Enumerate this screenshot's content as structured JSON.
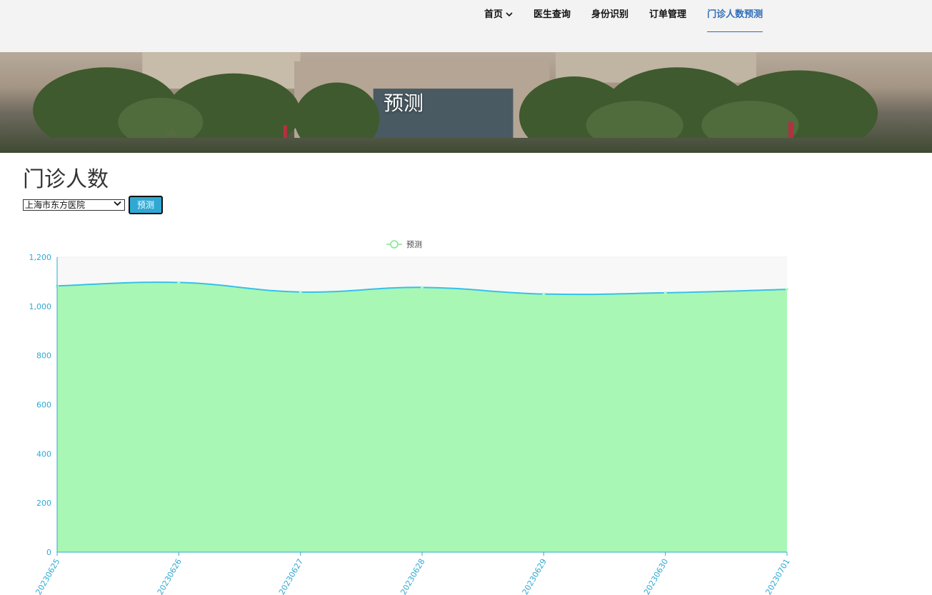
{
  "nav": {
    "items": [
      {
        "label": "首页",
        "has_dropdown": true,
        "active": false
      },
      {
        "label": "医生查询",
        "active": false
      },
      {
        "label": "身份识别",
        "active": false
      },
      {
        "label": "订单管理",
        "active": false
      },
      {
        "label": "门诊人数预测",
        "active": true
      }
    ]
  },
  "banner": {
    "title": "预测"
  },
  "main": {
    "title": "门诊人数",
    "hospital_select": {
      "value": "上海市东方医院"
    },
    "predict_button": "预测"
  },
  "colors": {
    "accent": "#2f6db8",
    "button": "#2fa9d3",
    "area_fill": "#a3f7b1",
    "line": "#37c0e8",
    "axis": "#2fa9d3"
  },
  "chart_data": {
    "type": "area",
    "categories": [
      "20230625",
      "20230626",
      "20230627",
      "20230628",
      "20230629",
      "20230630",
      "20230701"
    ],
    "series": [
      {
        "name": "预测",
        "values": [
          1083,
          1097,
          1058,
          1077,
          1050,
          1055,
          1069
        ]
      }
    ],
    "ylim": [
      0,
      1200
    ],
    "yticks": [
      0,
      200,
      400,
      600,
      800,
      1000,
      1200
    ],
    "ytick_labels": [
      "0",
      "200",
      "400",
      "600",
      "800",
      "1,000",
      "1,200"
    ],
    "legend": "top-center",
    "grid": true,
    "smooth": true
  }
}
